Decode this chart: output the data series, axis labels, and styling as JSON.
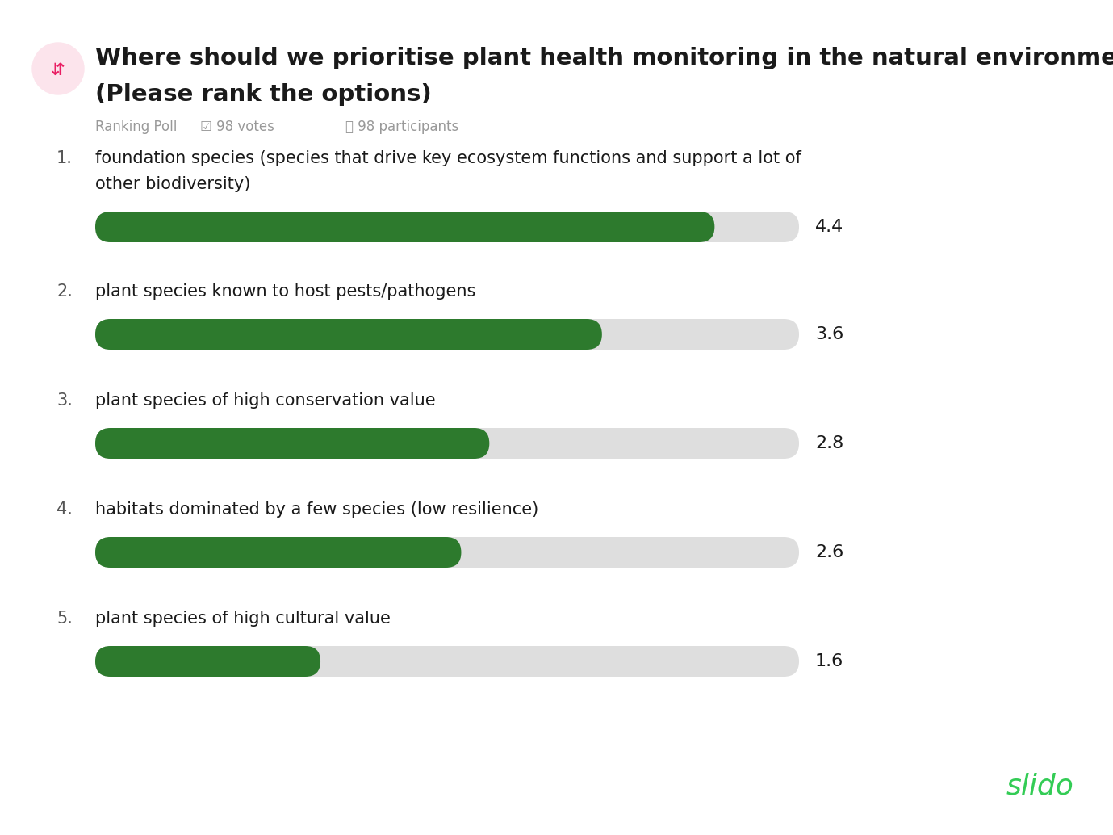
{
  "title_line1": "Where should we prioritise plant health monitoring in the natural environment?",
  "title_line2": "(Please rank the options)",
  "subtitle": "Ranking Poll",
  "votes": "98 votes",
  "participants": "98 participants",
  "items": [
    {
      "rank": "1.",
      "label_line1": "foundation species (species that drive key ecosystem functions and support a lot of",
      "label_line2": "other biodiversity)",
      "value": 4.4,
      "max_value": 5.0
    },
    {
      "rank": "2.",
      "label_line1": "plant species known to host pests/pathogens",
      "label_line2": null,
      "value": 3.6,
      "max_value": 5.0
    },
    {
      "rank": "3.",
      "label_line1": "plant species of high conservation value",
      "label_line2": null,
      "value": 2.8,
      "max_value": 5.0
    },
    {
      "rank": "4.",
      "label_line1": "habitats dominated by a few species (low resilience)",
      "label_line2": null,
      "value": 2.6,
      "max_value": 5.0
    },
    {
      "rank": "5.",
      "label_line1": "plant species of high cultural value",
      "label_line2": null,
      "value": 1.6,
      "max_value": 5.0
    }
  ],
  "bar_color": "#2d7a2d",
  "bar_bg_color": "#dedede",
  "background_color": "#ffffff",
  "title_color": "#1a1a1a",
  "rank_color": "#555555",
  "label_color": "#1a1a1a",
  "value_color": "#1a1a1a",
  "subtitle_color": "#999999",
  "slido_color": "#33cc55",
  "icon_circle_color": "#fce4ec",
  "icon_arrow_color": "#e91e63"
}
